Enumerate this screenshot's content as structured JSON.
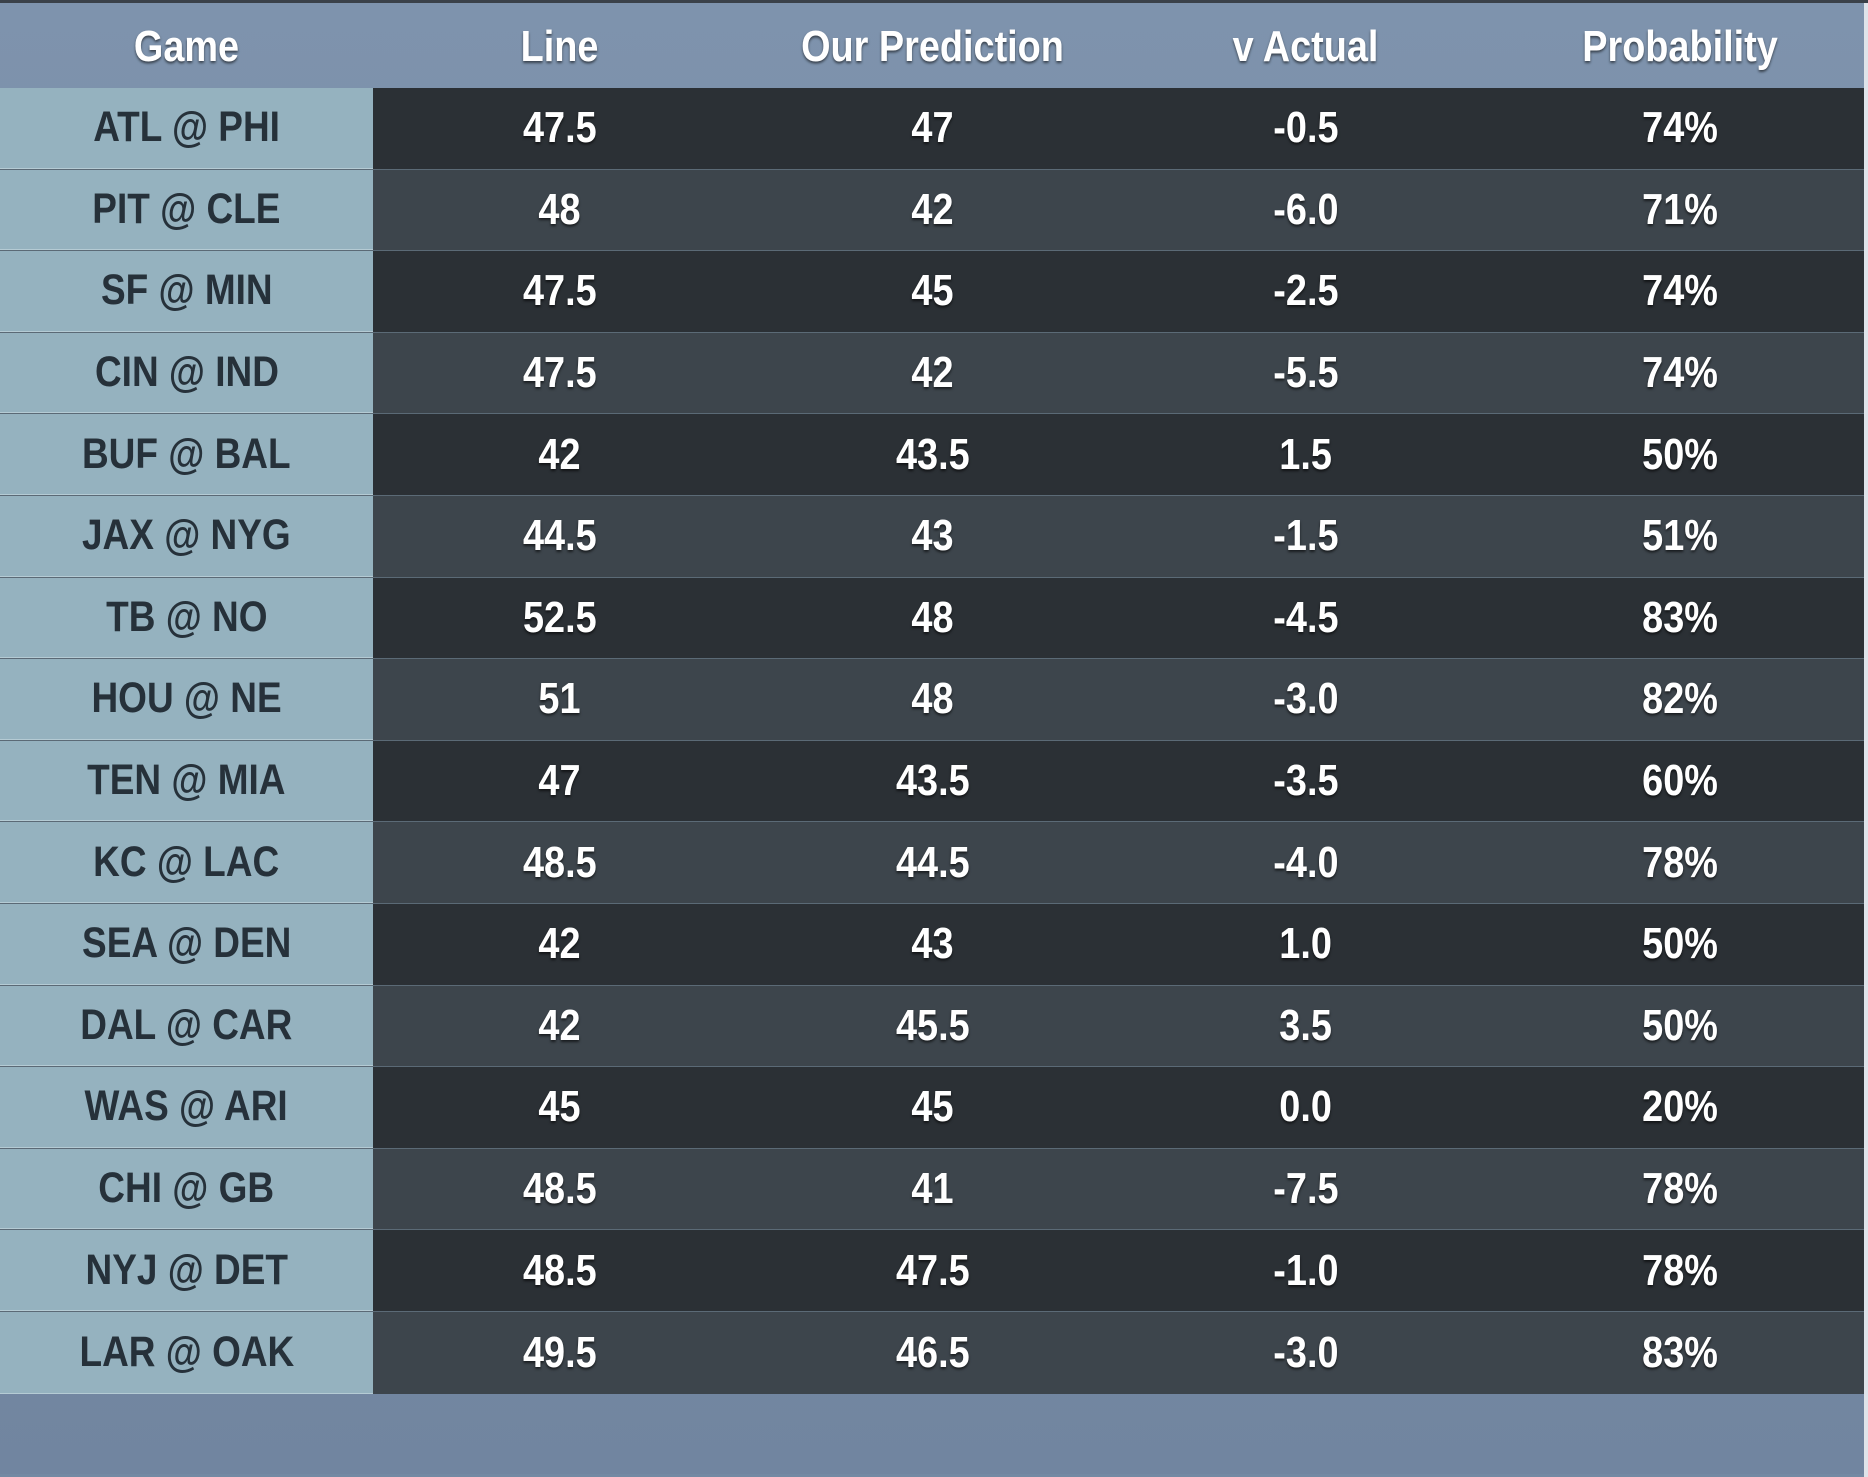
{
  "chart_data": {
    "type": "table",
    "columns": [
      "Game",
      "Line",
      "Our Prediction",
      "v Actual",
      "Probability"
    ],
    "rows": [
      {
        "game": "ATL @ PHI",
        "line": "47.5",
        "prediction": "47",
        "v_actual": "-0.5",
        "probability": "74%"
      },
      {
        "game": "PIT @ CLE",
        "line": "48",
        "prediction": "42",
        "v_actual": "-6.0",
        "probability": "71%"
      },
      {
        "game": "SF @ MIN",
        "line": "47.5",
        "prediction": "45",
        "v_actual": "-2.5",
        "probability": "74%"
      },
      {
        "game": "CIN @ IND",
        "line": "47.5",
        "prediction": "42",
        "v_actual": "-5.5",
        "probability": "74%"
      },
      {
        "game": "BUF @ BAL",
        "line": "42",
        "prediction": "43.5",
        "v_actual": "1.5",
        "probability": "50%"
      },
      {
        "game": "JAX @ NYG",
        "line": "44.5",
        "prediction": "43",
        "v_actual": "-1.5",
        "probability": "51%"
      },
      {
        "game": "TB @ NO",
        "line": "52.5",
        "prediction": "48",
        "v_actual": "-4.5",
        "probability": "83%"
      },
      {
        "game": "HOU @ NE",
        "line": "51",
        "prediction": "48",
        "v_actual": "-3.0",
        "probability": "82%"
      },
      {
        "game": "TEN @ MIA",
        "line": "47",
        "prediction": "43.5",
        "v_actual": "-3.5",
        "probability": "60%"
      },
      {
        "game": "KC @ LAC",
        "line": "48.5",
        "prediction": "44.5",
        "v_actual": "-4.0",
        "probability": "78%"
      },
      {
        "game": "SEA @ DEN",
        "line": "42",
        "prediction": "43",
        "v_actual": "1.0",
        "probability": "50%"
      },
      {
        "game": "DAL @ CAR",
        "line": "42",
        "prediction": "45.5",
        "v_actual": "3.5",
        "probability": "50%"
      },
      {
        "game": "WAS @ ARI",
        "line": "45",
        "prediction": "45",
        "v_actual": "0.0",
        "probability": "20%"
      },
      {
        "game": "CHI @ GB",
        "line": "48.5",
        "prediction": "41",
        "v_actual": "-7.5",
        "probability": "78%"
      },
      {
        "game": "NYJ @ DET",
        "line": "48.5",
        "prediction": "47.5",
        "v_actual": "-1.0",
        "probability": "78%"
      },
      {
        "game": "LAR @ OAK",
        "line": "49.5",
        "prediction": "46.5",
        "v_actual": "-3.0",
        "probability": "83%"
      }
    ]
  },
  "colors": {
    "header_bg": "#7e93ad",
    "game_col_bg": "#95b2bf",
    "row_dark": "#2b3035",
    "row_light": "#3d454c",
    "text_light": "#ffffff",
    "text_dark": "#26313a"
  }
}
